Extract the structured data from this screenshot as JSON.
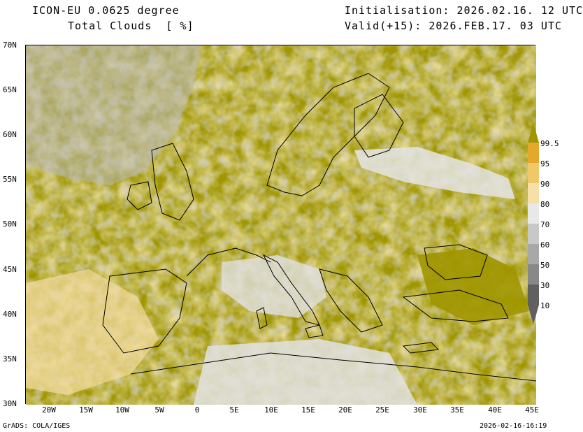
{
  "header": {
    "title_line1": "ICON-EU 0.0625 degree",
    "title_line2": "Total Clouds  [ %]",
    "init_text": "Initialisation: 2026.02.16. 12 UTC",
    "valid_text": "Valid(+15): 2026.FEB.17. 03 UTC"
  },
  "axes": {
    "lat_labels": [
      "70N",
      "65N",
      "60N",
      "55N",
      "50N",
      "45N",
      "40N",
      "35N",
      "30N"
    ],
    "lon_labels": [
      "20W",
      "15W",
      "10W",
      "5W",
      "0",
      "5E",
      "10E",
      "15E",
      "20E",
      "25E",
      "30E",
      "35E",
      "40E",
      "45E"
    ]
  },
  "colorbar": {
    "labels": [
      "99.5",
      "95",
      "90",
      "80",
      "70",
      "60",
      "50",
      "30",
      "10"
    ],
    "colors": [
      "#a09600",
      "#e3a82c",
      "#efc86a",
      "#f6e0a8",
      "#e8e8e8",
      "#c8c8c8",
      "#a8a8a8",
      "#888888",
      "#606060"
    ]
  },
  "footer": {
    "left": "GrADS: COLA/IGES",
    "right": "2026-02-16-16:19"
  },
  "map": {
    "land_color": "#a09600",
    "coast_color": "#000000"
  }
}
